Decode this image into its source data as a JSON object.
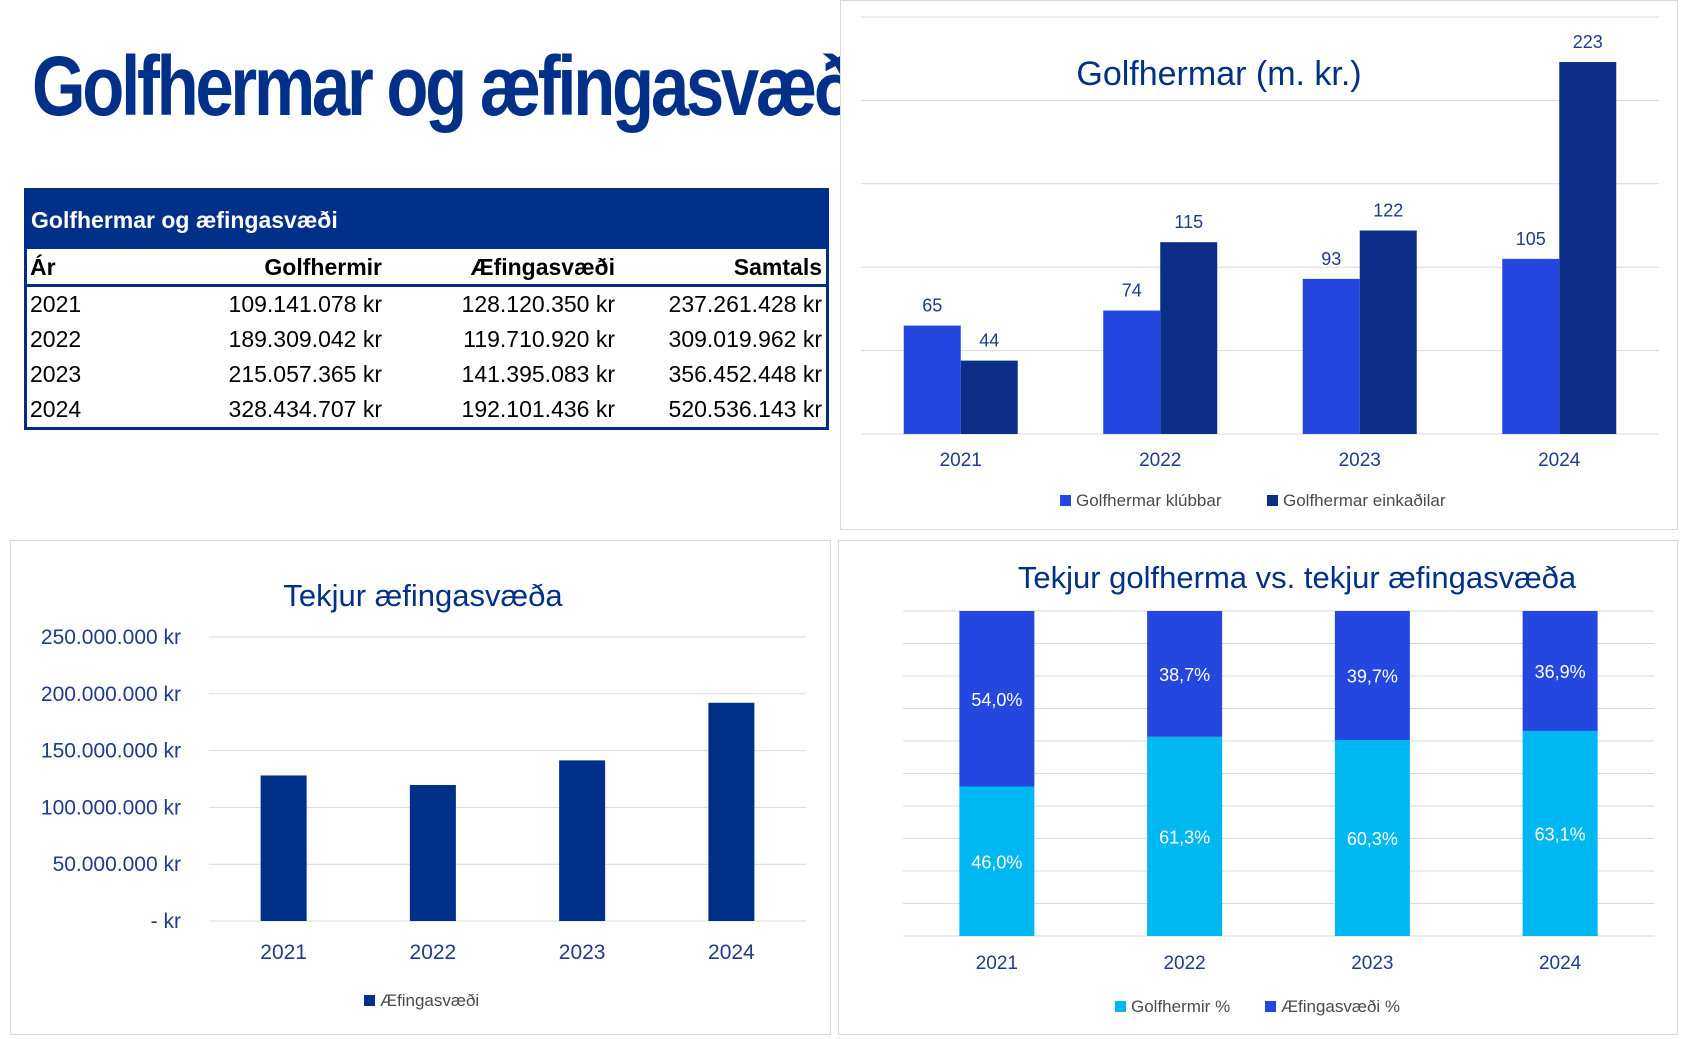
{
  "page_title": "Golfhermar og æfingasvæði",
  "table": {
    "title": "Golfhermar og æfingasvæði",
    "columns": [
      "Ár",
      "Golfhermir",
      "Æfingasvæði",
      "Samtals"
    ],
    "rows": [
      [
        "2021",
        "109.141.078 kr",
        "128.120.350 kr",
        "237.261.428 kr"
      ],
      [
        "2022",
        "189.309.042 kr",
        "119.710.920 kr",
        "309.019.962 kr"
      ],
      [
        "2023",
        "215.057.365 kr",
        "141.395.083 kr",
        "356.452.448 kr"
      ],
      [
        "2024",
        "328.434.707 kr",
        "192.101.436 kr",
        "520.536.143 kr"
      ]
    ]
  },
  "chart_data": [
    {
      "type": "bar",
      "title": "Golfhermar (m. kr.)",
      "categories": [
        "2021",
        "2022",
        "2023",
        "2024"
      ],
      "series": [
        {
          "name": "Golfhermar klúbbar",
          "values": [
            65,
            74,
            93,
            105
          ],
          "color": "#2447e0"
        },
        {
          "name": "Golfhermar einkaðilar",
          "values": [
            44,
            115,
            122,
            223
          ],
          "color": "#0b2f86"
        }
      ],
      "ylim": [
        0,
        250
      ],
      "grid": true,
      "legend": "bottom",
      "data_labels": true
    },
    {
      "type": "bar",
      "title": "Tekjur æfingasvæða",
      "categories": [
        "2021",
        "2022",
        "2023",
        "2024"
      ],
      "series": [
        {
          "name": "Æfingasvæði",
          "values": [
            128120350,
            119710920,
            141395083,
            192101436
          ],
          "color": "#003087"
        }
      ],
      "yticks": [
        "- kr",
        "50.000.000 kr",
        "100.000.000 kr",
        "150.000.000 kr",
        "200.000.000 kr",
        "250.000.000 kr"
      ],
      "ylim": [
        0,
        250000000
      ],
      "grid": true,
      "legend": "bottom"
    },
    {
      "type": "bar",
      "stacked": true,
      "title": "Tekjur golfherma vs. tekjur æfingasvæða",
      "categories": [
        "2021",
        "2022",
        "2023",
        "2024"
      ],
      "series": [
        {
          "name": "Golfhermir %",
          "values": [
            46.0,
            61.3,
            60.3,
            63.1
          ],
          "labels": [
            "46,0%",
            "61,3%",
            "60,3%",
            "63,1%"
          ],
          "color": "#00b8f1"
        },
        {
          "name": "Æfingasvæði %",
          "values": [
            54.0,
            38.7,
            39.7,
            36.9
          ],
          "labels": [
            "54,0%",
            "38,7%",
            "39,7%",
            "36,9%"
          ],
          "color": "#2447e0"
        }
      ],
      "ylim": [
        0,
        100
      ],
      "grid": true,
      "legend": "bottom"
    }
  ]
}
